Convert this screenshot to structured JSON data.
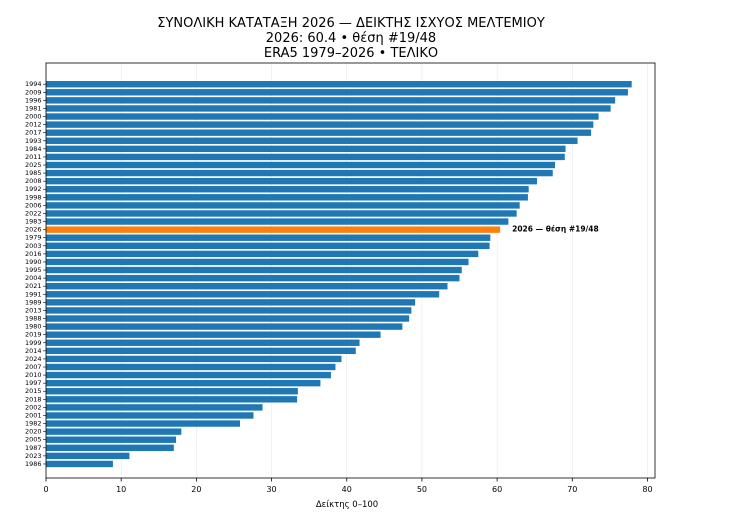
{
  "chart_data": {
    "type": "bar",
    "orientation": "horizontal",
    "title_lines": [
      "ΣΥΝΟΛΙΚΗ ΚΑΤΑΤΑΞΗ 2026 — ΔΕΙΚΤΗΣ ΙΣΧΥΟΣ ΜΕΛΤΕΜΙΟΥ",
      "2026: 60.4 • θέση #19/48",
      "ERA5 1979–2026 • ΤΕΛΙΚΟ"
    ],
    "xlabel": "Δείκτης 0–100",
    "ylabel": "",
    "xlim": [
      0,
      81
    ],
    "xticks": [
      "0",
      "10",
      "20",
      "30",
      "40",
      "50",
      "60",
      "70",
      "80"
    ],
    "grid": "vertical",
    "highlight_category": "2026",
    "annotation": "2026 — θέση #19/48",
    "colors": {
      "default": "#1f77b4",
      "highlight": "#ff7f0e"
    },
    "categories": [
      "1994",
      "2009",
      "1996",
      "1981",
      "2000",
      "2012",
      "2017",
      "1993",
      "1984",
      "2011",
      "2025",
      "1985",
      "2008",
      "1992",
      "1998",
      "2006",
      "2022",
      "1983",
      "2026",
      "1979",
      "2003",
      "2016",
      "1990",
      "1995",
      "2004",
      "2021",
      "1991",
      "1989",
      "2013",
      "1988",
      "1980",
      "2019",
      "1999",
      "2014",
      "2024",
      "2007",
      "2010",
      "1997",
      "2015",
      "2018",
      "2002",
      "2001",
      "1982",
      "2020",
      "2005",
      "1987",
      "2023",
      "1986"
    ],
    "values": [
      77.9,
      77.4,
      75.7,
      75.1,
      73.5,
      72.8,
      72.5,
      70.7,
      69.1,
      69.0,
      67.7,
      67.4,
      65.3,
      64.2,
      64.1,
      63.0,
      62.6,
      61.5,
      60.4,
      59.1,
      59.0,
      57.5,
      56.2,
      55.3,
      55.0,
      53.4,
      52.3,
      49.1,
      48.6,
      48.3,
      47.4,
      44.5,
      41.7,
      41.2,
      39.3,
      38.5,
      37.9,
      36.5,
      33.5,
      33.4,
      28.8,
      27.6,
      25.8,
      18.0,
      17.3,
      17.0,
      11.1,
      8.9
    ]
  }
}
